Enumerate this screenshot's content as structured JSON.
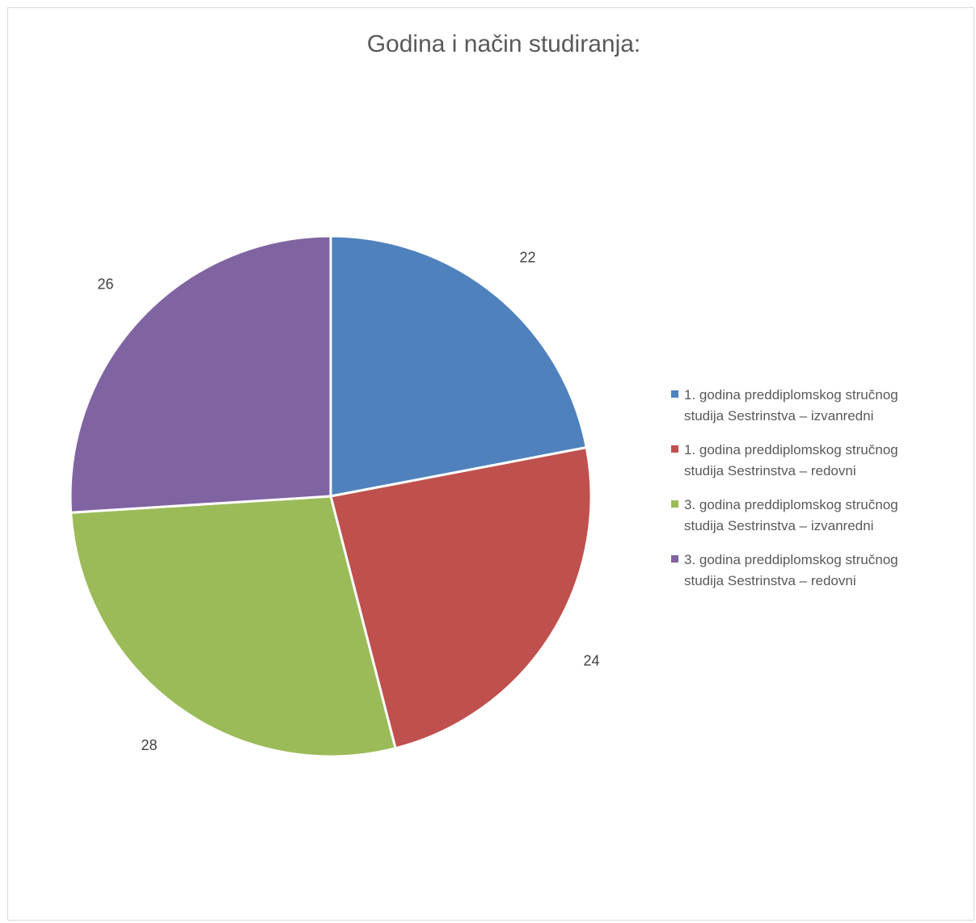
{
  "chart_data": {
    "type": "pie",
    "title": "Godina i način studiranja:",
    "categories": [
      "1. godina preddiplomskog stručnog\nstudija Sestrinstva – izvanredni",
      "1. godina preddiplomskog stručnog\nstudija Sestrinstva – redovni",
      "3. godina preddiplomskog stručnog\nstudija Sestrinstva – izvanredni",
      "3. godina preddiplomskog stručnog\nstudija Sestrinstva – redovni"
    ],
    "values": [
      22,
      24,
      28,
      26
    ],
    "colors": [
      "#4f81bd",
      "#c0504d",
      "#9bbb59",
      "#8064a2"
    ],
    "data_labels": [
      "22",
      "24",
      "28",
      "26"
    ],
    "legend_position": "right"
  }
}
